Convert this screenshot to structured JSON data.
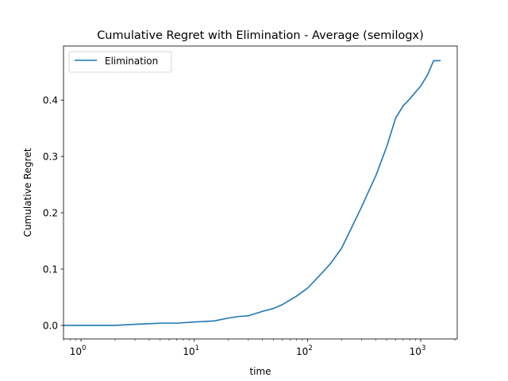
{
  "chart_data": {
    "type": "line",
    "title": "Cumulative Regret with Elimination - Average (semilogx)",
    "xlabel": "time",
    "ylabel": "Cumulative Regret",
    "xscale": "log",
    "xlim": [
      0.7,
      2100
    ],
    "ylim": [
      -0.024,
      0.496
    ],
    "x_ticks": [
      {
        "value": 1,
        "base": "10",
        "exp": "0"
      },
      {
        "value": 10,
        "base": "10",
        "exp": "1"
      },
      {
        "value": 100,
        "base": "10",
        "exp": "2"
      },
      {
        "value": 1000,
        "base": "10",
        "exp": "3"
      }
    ],
    "y_ticks": [
      {
        "value": 0.0,
        "label": "0.0"
      },
      {
        "value": 0.1,
        "label": "0.1"
      },
      {
        "value": 0.2,
        "label": "0.2"
      },
      {
        "value": 0.3,
        "label": "0.3"
      },
      {
        "value": 0.4,
        "label": "0.4"
      }
    ],
    "grid": false,
    "legend_position": "top-left",
    "series": [
      {
        "name": "Elimination",
        "color": "#1f77b4",
        "x": [
          0.7,
          1,
          2,
          3,
          4,
          5,
          7,
          10,
          15,
          20,
          25,
          30,
          40,
          50,
          60,
          80,
          100,
          130,
          160,
          200,
          250,
          300,
          350,
          400,
          500,
          600,
          700,
          800,
          1000,
          1150,
          1300,
          1500
        ],
        "y": [
          0,
          0,
          0,
          0.002,
          0.003,
          0.004,
          0.004,
          0.006,
          0.008,
          0.013,
          0.016,
          0.017,
          0.025,
          0.03,
          0.037,
          0.052,
          0.066,
          0.09,
          0.11,
          0.137,
          0.177,
          0.21,
          0.24,
          0.265,
          0.317,
          0.368,
          0.39,
          0.402,
          0.425,
          0.445,
          0.47,
          0.47
        ]
      }
    ]
  }
}
